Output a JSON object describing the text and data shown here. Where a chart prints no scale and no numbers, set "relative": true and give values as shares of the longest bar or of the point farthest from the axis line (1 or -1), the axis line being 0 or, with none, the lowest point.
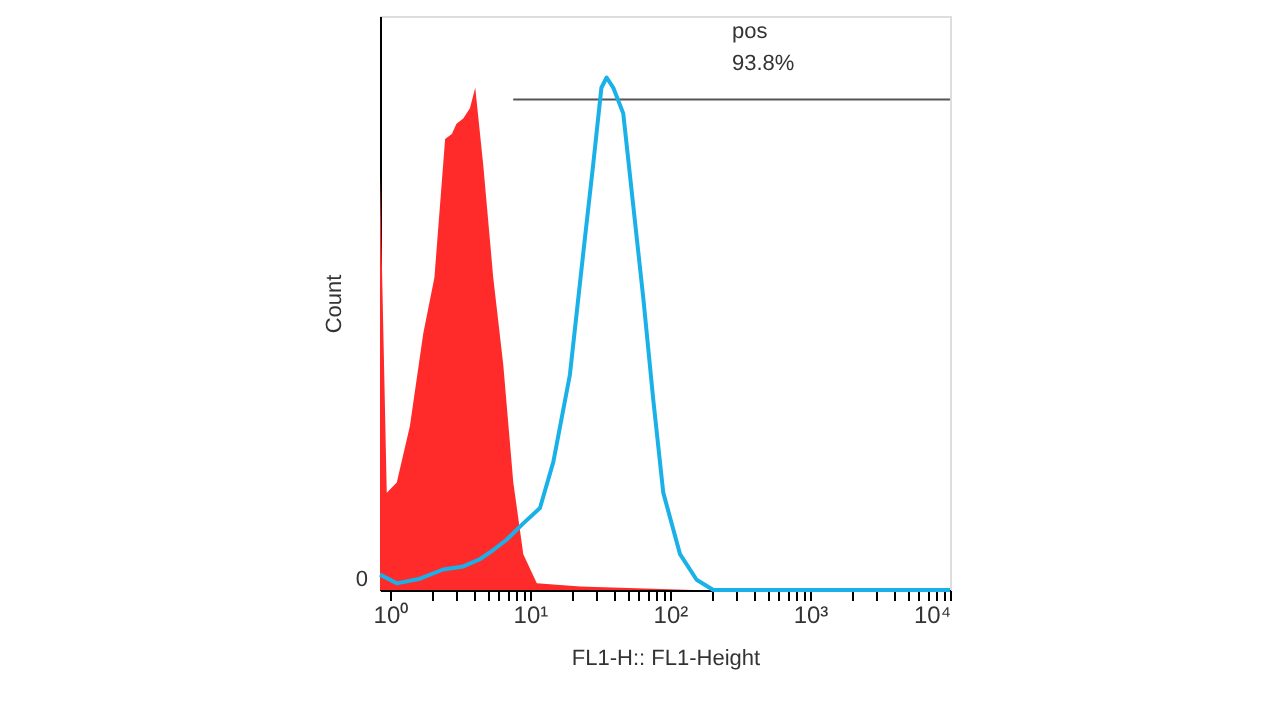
{
  "chart_data": {
    "type": "area",
    "relative": true,
    "xlabel": "FL1-H:: FL1-Height",
    "ylabel": "Count",
    "log": "x",
    "grid": false,
    "legend": false,
    "xlim": [
      0.85,
      10000
    ],
    "xticks": [
      {
        "value": 1,
        "label": "10⁰"
      },
      {
        "value": 2,
        "label": null
      },
      {
        "value": 3,
        "label": null
      },
      {
        "value": 4,
        "label": null
      },
      {
        "value": 5,
        "label": null
      },
      {
        "value": 6,
        "label": null
      },
      {
        "value": 7,
        "label": null
      },
      {
        "value": 8,
        "label": null
      },
      {
        "value": 9,
        "label": null
      },
      {
        "value": 10,
        "label": "10¹"
      },
      {
        "value": 20,
        "label": null
      },
      {
        "value": 30,
        "label": null
      },
      {
        "value": 40,
        "label": null
      },
      {
        "value": 50,
        "label": null
      },
      {
        "value": 60,
        "label": null
      },
      {
        "value": 70,
        "label": null
      },
      {
        "value": 80,
        "label": null
      },
      {
        "value": 90,
        "label": null
      },
      {
        "value": 100,
        "label": "10²"
      },
      {
        "value": 200,
        "label": null
      },
      {
        "value": 300,
        "label": null
      },
      {
        "value": 400,
        "label": null
      },
      {
        "value": 500,
        "label": null
      },
      {
        "value": 600,
        "label": null
      },
      {
        "value": 700,
        "label": null
      },
      {
        "value": 800,
        "label": null
      },
      {
        "value": 900,
        "label": null
      },
      {
        "value": 1000,
        "label": "10³"
      },
      {
        "value": 2000,
        "label": null
      },
      {
        "value": 3000,
        "label": null
      },
      {
        "value": 4000,
        "label": null
      },
      {
        "value": 5000,
        "label": null
      },
      {
        "value": 6000,
        "label": null
      },
      {
        "value": 7000,
        "label": null
      },
      {
        "value": 8000,
        "label": null
      },
      {
        "value": 9000,
        "label": null
      },
      {
        "value": 10000,
        "label": "10⁴"
      }
    ],
    "annotations": [
      "pos",
      "93.8%",
      "0"
    ],
    "series": [
      {
        "color": "#ff2a2a",
        "x": [
          0.85,
          0.95,
          1.12,
          1.39,
          1.73,
          2.08,
          2.48,
          2.77,
          2.99,
          3.34,
          3.73,
          4.07,
          4.64,
          5.47,
          6.45,
          7.61,
          8.97,
          11.2,
          22.8,
          147,
          10000
        ],
        "values": [
          0.81,
          0.19,
          0.21,
          0.32,
          0.5,
          0.61,
          0.88,
          0.89,
          0.91,
          0.92,
          0.94,
          0.98,
          0.83,
          0.61,
          0.44,
          0.21,
          0.07,
          0.013,
          0.007,
          0,
          0
        ]
      },
      {
        "type": "line",
        "color": "#555555",
        "x": [
          7.6,
          10000
        ],
        "values": [
          0.957,
          0.957
        ]
      },
      {
        "type": "line",
        "color": "#1ab0e8",
        "x": [
          0.85,
          1.12,
          1.64,
          2.4,
          3.34,
          4.39,
          5.47,
          6.81,
          8.97,
          11.8,
          14.7,
          19.3,
          24.1,
          28.3,
          32.4,
          35.3,
          39.4,
          46.4,
          54.7,
          64.5,
          76.1,
          89.6,
          118,
          155,
          204,
          10000
        ],
        "values": [
          0.03,
          0.013,
          0.022,
          0.04,
          0.046,
          0.06,
          0.078,
          0.098,
          0.13,
          0.16,
          0.25,
          0.42,
          0.66,
          0.83,
          0.98,
          1.0,
          0.98,
          0.93,
          0.75,
          0.57,
          0.37,
          0.19,
          0.07,
          0.02,
          0,
          0
        ]
      }
    ]
  }
}
